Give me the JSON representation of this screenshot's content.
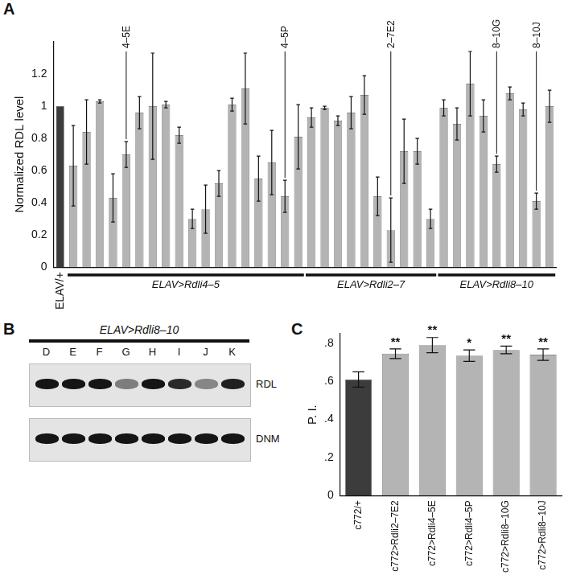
{
  "chart_data": [
    {
      "panel_label": "A",
      "type": "bar",
      "ylabel": "Normalized RDL level",
      "categories": [
        "ELAV/+",
        null,
        null,
        null,
        null,
        null,
        null,
        null,
        null,
        null,
        null,
        null,
        null,
        null,
        null,
        null,
        null,
        null,
        null,
        null,
        null,
        null,
        null,
        null,
        null,
        null,
        null,
        null,
        null,
        null,
        null,
        null,
        null,
        null,
        null,
        null,
        null,
        null
      ],
      "values": [
        1,
        0.63,
        0.84,
        1.03,
        0.43,
        0.7,
        0.96,
        1.0,
        1.01,
        0.82,
        0.3,
        0.36,
        0.52,
        1.01,
        1.11,
        0.55,
        0.65,
        0.44,
        0.81,
        0.93,
        0.99,
        0.91,
        0.96,
        1.07,
        0.44,
        0.23,
        0.72,
        0.72,
        0.3,
        0.99,
        0.89,
        1.14,
        0.94,
        0.64,
        1.08,
        0.98,
        0.41,
        1.0
      ],
      "errors": [
        null,
        0.25,
        0.2,
        0.01,
        0.15,
        0.08,
        0.1,
        0.33,
        0.02,
        0.05,
        0.06,
        0.15,
        0.08,
        0.04,
        0.22,
        0.14,
        0.2,
        0.1,
        0.2,
        0.06,
        0.01,
        0.03,
        0.1,
        0.12,
        0.12,
        0.2,
        0.2,
        0.08,
        0.06,
        0.05,
        0.1,
        0.2,
        0.1,
        0.05,
        0.04,
        0.04,
        0.05,
        0.1
      ],
      "colors": [
        "#3c3c3c",
        "#b4b4b4",
        "#b4b4b4",
        "#b4b4b4",
        "#b4b4b4",
        "#b4b4b4",
        "#b4b4b4",
        "#b4b4b4",
        "#b4b4b4",
        "#b4b4b4",
        "#b4b4b4",
        "#b4b4b4",
        "#b4b4b4",
        "#b4b4b4",
        "#b4b4b4",
        "#b4b4b4",
        "#b4b4b4",
        "#b4b4b4",
        "#b4b4b4",
        "#b4b4b4",
        "#b4b4b4",
        "#b4b4b4",
        "#b4b4b4",
        "#b4b4b4",
        "#b4b4b4",
        "#b4b4b4",
        "#b4b4b4",
        "#b4b4b4",
        "#b4b4b4",
        "#b4b4b4",
        "#b4b4b4",
        "#b4b4b4",
        "#b4b4b4",
        "#b4b4b4",
        "#b4b4b4",
        "#b4b4b4",
        "#b4b4b4",
        "#b4b4b4"
      ],
      "ylim": [
        0,
        1.4
      ],
      "yticks": [
        0,
        0.2,
        0.4,
        0.6,
        0.8,
        1,
        1.2
      ],
      "grid": false,
      "annotations": [
        {
          "text": "4–5E",
          "index": 5
        },
        {
          "text": "4–5P",
          "index": 17
        },
        {
          "text": "2–7E2",
          "index": 25
        },
        {
          "text": "8–10G",
          "index": 33
        },
        {
          "text": "8–10J",
          "index": 36
        }
      ],
      "groups": [
        {
          "label": "ELAV>Rdli4–5",
          "first": 1,
          "last": 18
        },
        {
          "label": "ELAV>Rdli2–7",
          "first": 19,
          "last": 28
        },
        {
          "label": "ELAV>Rdli8–10",
          "first": 29,
          "last": 37
        }
      ]
    },
    {
      "panel_label": "C",
      "type": "bar",
      "ylabel": "P. I.",
      "categories": [
        "c772/+",
        "c772>Rdli2–7E2",
        "c772>Rdli4–5E",
        "c772>Rdli4–5P",
        "c772>Rdli8–10G",
        "c772>Rdli8–10J"
      ],
      "values": [
        0.61,
        0.745,
        0.79,
        0.735,
        0.765,
        0.74
      ],
      "errors": [
        0.04,
        0.025,
        0.04,
        0.03,
        0.02,
        0.03
      ],
      "colors": [
        "#3c3c3c",
        "#b4b4b4",
        "#b4b4b4",
        "#b4b4b4",
        "#b4b4b4",
        "#b4b4b4"
      ],
      "significance": [
        null,
        "**",
        "**",
        "*",
        "**",
        "**"
      ],
      "ylim": [
        0,
        0.85
      ],
      "yticks": [
        0,
        {
          "value": 0.2,
          "label": ".2"
        },
        {
          "value": 0.4,
          "label": ".4"
        },
        {
          "value": 0.6,
          "label": ".6"
        },
        {
          "value": 0.8,
          "label": ".8"
        }
      ],
      "grid": false
    }
  ],
  "blot": {
    "panel_label": "B",
    "title": "ELAV>Rdli8–10",
    "lanes": [
      "D",
      "E",
      "F",
      "G",
      "H",
      "I",
      "J",
      "K"
    ],
    "rows": [
      {
        "label": "RDL",
        "intensity": [
          1,
          1,
          1,
          0.5,
          1,
          0.9,
          0.45,
          0.95
        ]
      },
      {
        "label": "DNM",
        "intensity": [
          1,
          1,
          1,
          1,
          1,
          1,
          1,
          1
        ]
      }
    ]
  }
}
